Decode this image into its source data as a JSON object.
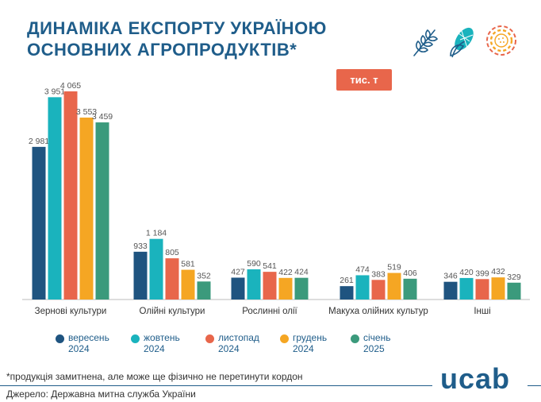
{
  "title": "ДИНАМІКА ЕКСПОРТУ УКРАЇНОЮ\nОСНОВНИХ АГРОПРОДУКТІВ*",
  "unit_badge": "тис. т",
  "icons": [
    "wheat-icon",
    "corn-icon",
    "sunflower-icon"
  ],
  "footnote": "*продукція замитнена, але може ще фізично не перетинути кордон",
  "source": "Джерело: Державна митна служба України",
  "logo": "ucab",
  "colors": {
    "title": "#1f5d8a",
    "badge": "#e8664b",
    "series": [
      "#1f5480",
      "#1ab3bd",
      "#e8664b",
      "#f5a623",
      "#3b9a7c"
    ]
  },
  "chart_data": {
    "type": "bar",
    "categories": [
      "Зернові культури",
      "Олійні культури",
      "Рослинні олії",
      "Макуха олійних культур",
      "Інші"
    ],
    "series": [
      {
        "name": "вересень\n2024",
        "values": [
          2981,
          933,
          427,
          261,
          346
        ]
      },
      {
        "name": "жовтень\n2024",
        "values": [
          3951,
          1184,
          590,
          474,
          420
        ]
      },
      {
        "name": "листопад\n2024",
        "values": [
          4065,
          805,
          541,
          383,
          399
        ]
      },
      {
        "name": "грудень\n2024",
        "values": [
          3553,
          581,
          422,
          519,
          432
        ]
      },
      {
        "name": "січень\n2025",
        "values": [
          3459,
          352,
          424,
          406,
          329
        ]
      }
    ],
    "value_labels": [
      [
        "2 981",
        "933",
        "427",
        "261",
        "346"
      ],
      [
        "3 951",
        "1 184",
        "590",
        "474",
        "420"
      ],
      [
        "4 065",
        "805",
        "541",
        "383",
        "399"
      ],
      [
        "3 553",
        "581",
        "422",
        "519",
        "432"
      ],
      [
        "3 459",
        "352",
        "424",
        "406",
        "329"
      ]
    ],
    "unit": "тис. т",
    "ylim": [
      0,
      4065
    ],
    "grid": false,
    "legend_position": "bottom"
  }
}
